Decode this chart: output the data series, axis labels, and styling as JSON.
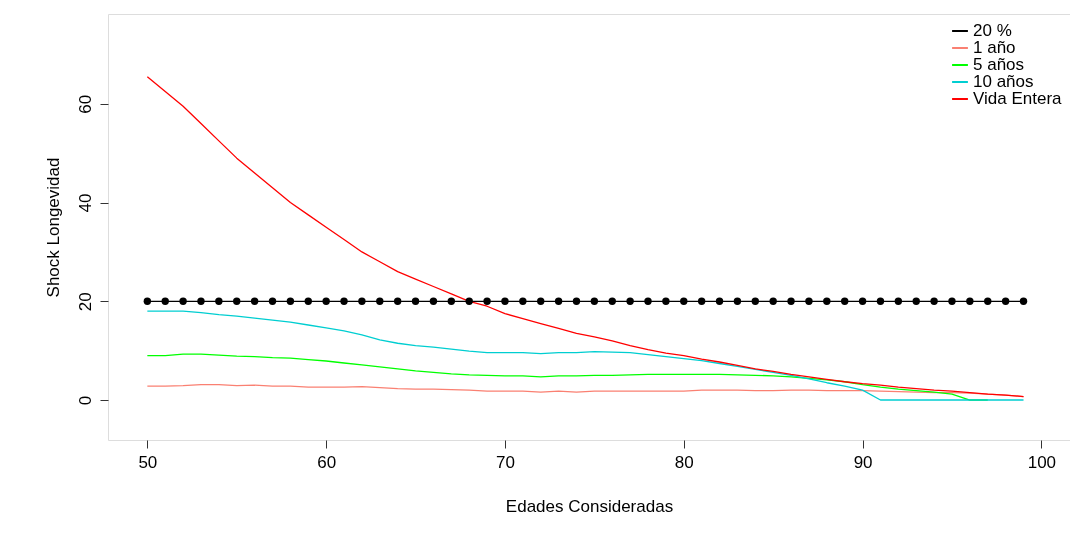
{
  "chart_data": {
    "type": "line",
    "xlabel": "Edades Consideradas",
    "ylabel": "Shock Longevidad",
    "x": [
      50,
      51,
      52,
      53,
      54,
      55,
      56,
      57,
      58,
      59,
      60,
      61,
      62,
      63,
      64,
      65,
      66,
      67,
      68,
      69,
      70,
      71,
      72,
      73,
      74,
      75,
      76,
      77,
      78,
      79,
      80,
      81,
      82,
      83,
      84,
      85,
      86,
      87,
      88,
      89,
      90,
      91,
      92,
      93,
      94,
      95,
      96,
      97,
      98,
      99
    ],
    "xlim": [
      47.8,
      101.6
    ],
    "xticks": [
      50,
      60,
      70,
      80,
      90,
      100
    ],
    "ylim": [
      -8.1,
      78.2
    ],
    "yticks": [
      0,
      20,
      40,
      60
    ],
    "grid": false,
    "legend": "top right",
    "series": [
      {
        "name": "20 %",
        "color": "#000000",
        "marker": "circle",
        "values": [
          20,
          20,
          20,
          20,
          20,
          20,
          20,
          20,
          20,
          20,
          20,
          20,
          20,
          20,
          20,
          20,
          20,
          20,
          20,
          20,
          20,
          20,
          20,
          20,
          20,
          20,
          20,
          20,
          20,
          20,
          20,
          20,
          20,
          20,
          20,
          20,
          20,
          20,
          20,
          20,
          20,
          20,
          20,
          20,
          20,
          20,
          20,
          20,
          20,
          20
        ]
      },
      {
        "name": "1 año",
        "color": "#fa8072",
        "values": [
          2.8,
          2.8,
          2.9,
          3.1,
          3.1,
          2.9,
          3,
          2.8,
          2.8,
          2.6,
          2.6,
          2.6,
          2.7,
          2.5,
          2.3,
          2.2,
          2.2,
          2.1,
          2,
          1.8,
          1.8,
          1.8,
          1.6,
          1.8,
          1.6,
          1.8,
          1.8,
          1.8,
          1.8,
          1.8,
          1.8,
          2,
          2,
          2,
          1.9,
          1.9,
          2,
          2,
          1.9,
          1.9,
          1.9,
          1.8,
          1.7,
          1.6,
          1.5,
          1.5,
          1.4,
          1.2,
          1,
          0.7
        ]
      },
      {
        "name": "5 años",
        "color": "#00ff00",
        "values": [
          9,
          9,
          9.3,
          9.3,
          9.1,
          8.9,
          8.8,
          8.6,
          8.5,
          8.2,
          7.9,
          7.5,
          7.1,
          6.7,
          6.3,
          5.9,
          5.6,
          5.3,
          5.1,
          5,
          4.9,
          4.9,
          4.7,
          4.9,
          4.9,
          5,
          5,
          5.1,
          5.2,
          5.2,
          5.2,
          5.2,
          5.2,
          5.1,
          5,
          4.9,
          4.7,
          4.4,
          4.1,
          3.7,
          3.1,
          2.6,
          2.2,
          1.9,
          1.6,
          1.2,
          0,
          0,
          null,
          null
        ]
      },
      {
        "name": "10 años",
        "color": "#00ced1",
        "values": [
          18,
          18,
          18,
          17.7,
          17.3,
          17,
          16.6,
          16.2,
          15.8,
          15.2,
          14.6,
          14,
          13.2,
          12.2,
          11.5,
          11,
          10.7,
          10.3,
          9.9,
          9.6,
          9.6,
          9.6,
          9.4,
          9.6,
          9.6,
          9.8,
          9.7,
          9.6,
          9.2,
          8.8,
          8.4,
          8,
          7.4,
          6.8,
          6.2,
          5.6,
          5,
          4.3,
          3.5,
          2.8,
          2,
          0,
          0,
          0,
          0,
          0,
          0,
          0,
          0,
          0
        ]
      },
      {
        "name": "Vida Entera",
        "color": "#ff0000",
        "values": [
          65.5,
          62.5,
          59.5,
          56,
          52.5,
          49,
          46,
          43,
          40,
          37.5,
          35,
          32.5,
          30,
          28,
          26,
          24.5,
          23,
          21.5,
          20,
          19,
          17.5,
          16.5,
          15.5,
          14.5,
          13.5,
          12.8,
          12,
          11,
          10.2,
          9.5,
          9,
          8.3,
          7.7,
          7,
          6.3,
          5.8,
          5.2,
          4.7,
          4.2,
          3.7,
          3.3,
          3,
          2.6,
          2.3,
          2,
          1.8,
          1.5,
          1.2,
          1,
          0.7
        ]
      }
    ]
  }
}
